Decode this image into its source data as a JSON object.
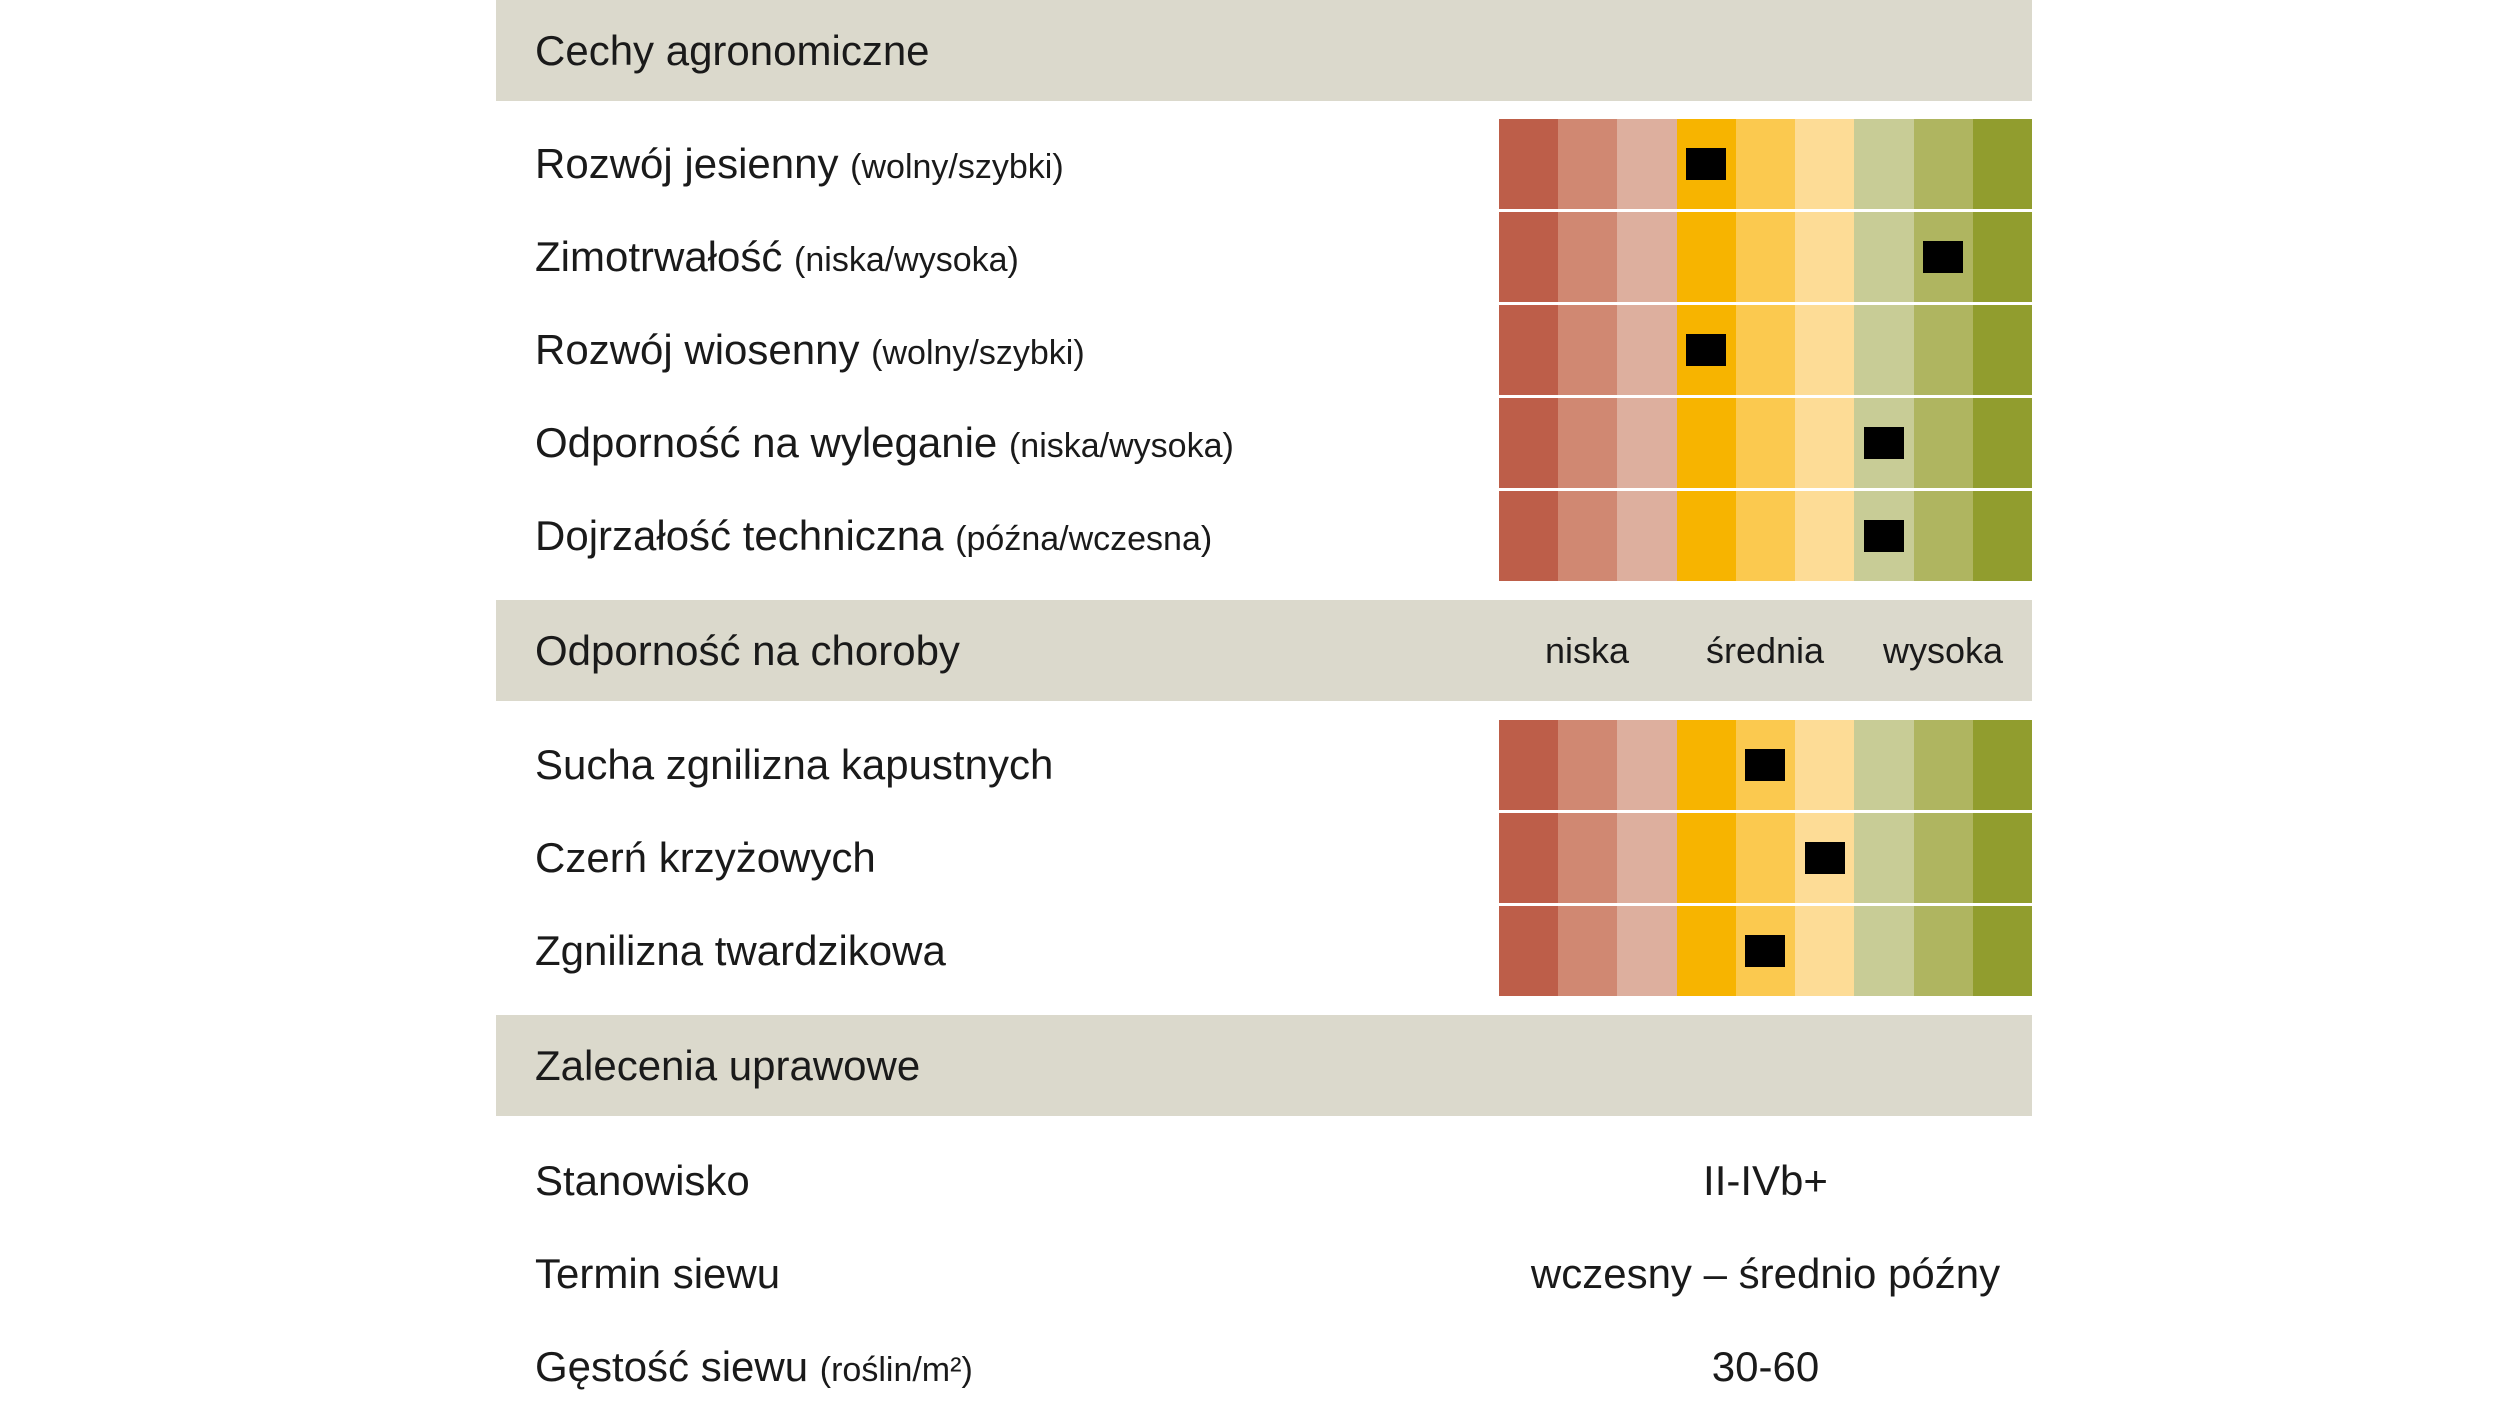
{
  "scale_colors": [
    "#bd5e49",
    "#d08872",
    "#ddaf9e",
    "#f7b400",
    "#fbc94f",
    "#fddc96",
    "#c8cc96",
    "#afb560",
    "#919d2e"
  ],
  "agronomic": {
    "title": "Cechy agronomiczne",
    "rows": [
      {
        "label": "Rozwój jesienny",
        "hint": "(wolny/szybki)",
        "level": 4
      },
      {
        "label": "Zimotrwałość",
        "hint": "(niska/wysoka)",
        "level": 8
      },
      {
        "label": "Rozwój wiosenny",
        "hint": "(wolny/szybki)",
        "level": 4
      },
      {
        "label": "Odporność na wyleganie",
        "hint": "(niska/wysoka)",
        "level": 7
      },
      {
        "label": "Dojrzałość techniczna",
        "hint": "(późna/wczesna)",
        "level": 7
      }
    ]
  },
  "disease": {
    "title": "Odporność na choroby",
    "scale_labels": {
      "low": "niska",
      "mid": "średnia",
      "high": "wysoka"
    },
    "rows": [
      {
        "label": "Sucha zgnilizna kapustnych",
        "level": 5
      },
      {
        "label": "Czerń krzyżowych",
        "level": 6
      },
      {
        "label": "Zgnilizna twardzikowa",
        "level": 5
      }
    ]
  },
  "recommendations": {
    "title": "Zalecenia uprawowe",
    "rows": [
      {
        "label": "Stanowisko",
        "hint": "",
        "value": "II-IVb+"
      },
      {
        "label": "Termin siewu",
        "hint": "",
        "value": "wczesny – średnio późny"
      },
      {
        "label": "Gęstość siewu",
        "hint": "(roślin/m²)",
        "value": "30-60"
      }
    ]
  }
}
